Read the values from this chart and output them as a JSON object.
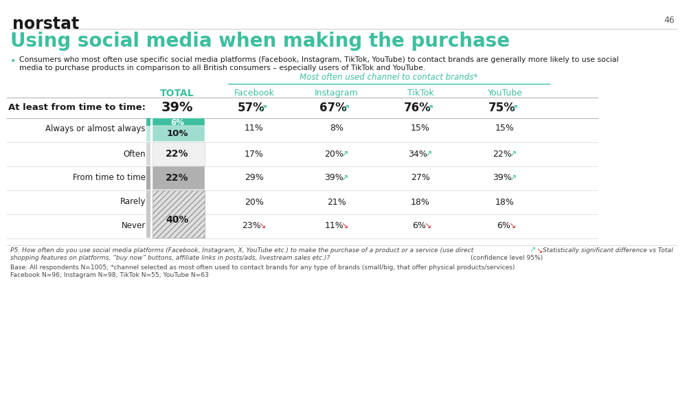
{
  "title": "Using social media when making the purchase",
  "subtitle_line1": "Consumers who most often use specific social media platforms (Facebook, Instagram, TikTok, YouTube) to contact brands are generally more likely to use social",
  "subtitle_line2": "media to purchase products in comparison to all British consumers – especially users of TikTok and YouTube.",
  "logo": "norstat",
  "page_num": "46",
  "header_group": "Most often used channel to contact brands*",
  "footnote1_line1": "P5. How often do you use social media platforms (Facebook, Instagram, X, YouTube etc.) to make the purchase of a product or a service (use direct",
  "footnote1_line2": "shopping features on platforms, “buy now” buttons, affiliate links in posts/ads, livestream sales etc.)?",
  "footnote2_line1": "Base: All respondents N=1005; *channel selected as most often used to contact brands for any type of brands (small/big, that offer physical products/services)",
  "footnote2_line2": "Facebook N=96; Instagram N=98; TikTok N=55; YouTube N=63",
  "legend_line1": "Statistically significant difference vs Total",
  "legend_line2": "(confidence level 95%)",
  "bg_color": "#ffffff",
  "teal_dark": "#3dbf9f",
  "teal_light": "#a0ddd0",
  "gray_bar": "#aaaaaa",
  "hatch_color": "#cccccc",
  "arrow_up_color": "#3dbf9f",
  "arrow_down_color": "#d04040",
  "sep_color": "#dddddd",
  "text_dark": "#1a1a1a",
  "text_mid": "#333333",
  "text_light": "#555555"
}
